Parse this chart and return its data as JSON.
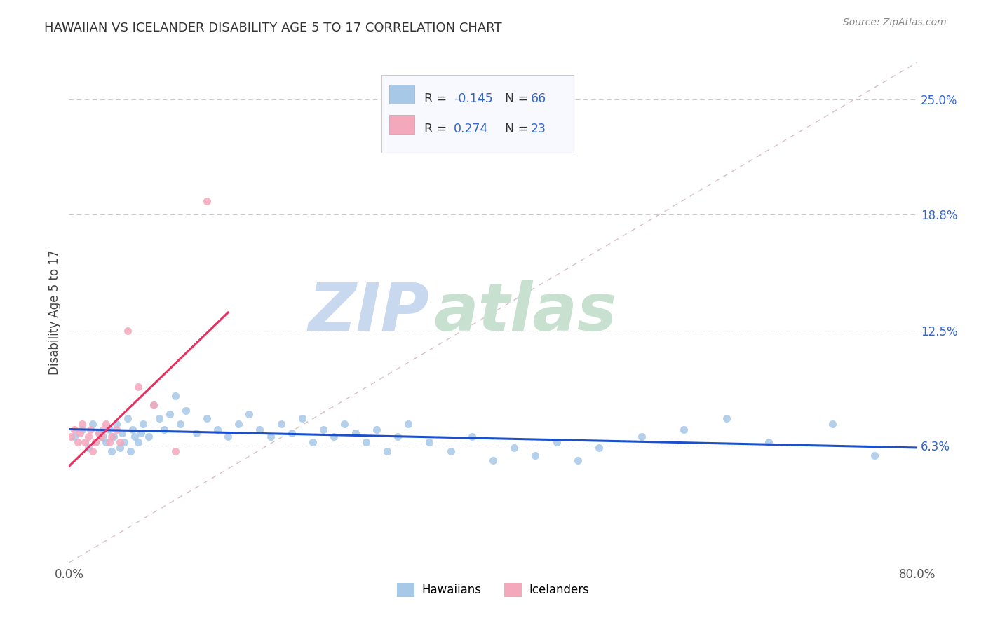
{
  "title": "HAWAIIAN VS ICELANDER DISABILITY AGE 5 TO 17 CORRELATION CHART",
  "source_text": "Source: ZipAtlas.com",
  "ylabel": "Disability Age 5 to 17",
  "right_yticks": [
    "6.3%",
    "12.5%",
    "18.8%",
    "25.0%"
  ],
  "right_ytick_vals": [
    0.063,
    0.125,
    0.188,
    0.25
  ],
  "xmin": 0.0,
  "xmax": 0.8,
  "ymin": 0.0,
  "ymax": 0.27,
  "hawaiian_color": "#a8c8e8",
  "icelander_color": "#f4a8bc",
  "trendline_hawaiian_color": "#1a50cc",
  "trendline_icelander_color": "#e83060",
  "diagonal_color": "#d8c0c0",
  "background_color": "#ffffff",
  "legend_box_color": "#e8eef8",
  "watermark_zip_color": "#c8d8ee",
  "watermark_atlas_color": "#d8e8d0",
  "hx": [
    0.005,
    0.012,
    0.018,
    0.022,
    0.025,
    0.028,
    0.032,
    0.035,
    0.038,
    0.04,
    0.042,
    0.045,
    0.048,
    0.05,
    0.052,
    0.055,
    0.058,
    0.06,
    0.062,
    0.065,
    0.068,
    0.07,
    0.075,
    0.08,
    0.085,
    0.09,
    0.095,
    0.1,
    0.105,
    0.11,
    0.12,
    0.13,
    0.14,
    0.15,
    0.16,
    0.17,
    0.18,
    0.19,
    0.2,
    0.21,
    0.22,
    0.23,
    0.24,
    0.25,
    0.26,
    0.27,
    0.28,
    0.29,
    0.3,
    0.31,
    0.32,
    0.34,
    0.36,
    0.38,
    0.4,
    0.42,
    0.44,
    0.46,
    0.48,
    0.5,
    0.54,
    0.58,
    0.62,
    0.66,
    0.72,
    0.76
  ],
  "hy": [
    0.068,
    0.072,
    0.062,
    0.075,
    0.065,
    0.07,
    0.068,
    0.065,
    0.072,
    0.06,
    0.068,
    0.075,
    0.062,
    0.07,
    0.065,
    0.078,
    0.06,
    0.072,
    0.068,
    0.065,
    0.07,
    0.075,
    0.068,
    0.085,
    0.078,
    0.072,
    0.08,
    0.09,
    0.075,
    0.082,
    0.07,
    0.078,
    0.072,
    0.068,
    0.075,
    0.08,
    0.072,
    0.068,
    0.075,
    0.07,
    0.078,
    0.065,
    0.072,
    0.068,
    0.075,
    0.07,
    0.065,
    0.072,
    0.06,
    0.068,
    0.075,
    0.065,
    0.06,
    0.068,
    0.055,
    0.062,
    0.058,
    0.065,
    0.055,
    0.062,
    0.068,
    0.072,
    0.078,
    0.065,
    0.075,
    0.058
  ],
  "ix": [
    0.002,
    0.005,
    0.008,
    0.01,
    0.012,
    0.015,
    0.018,
    0.02,
    0.022,
    0.025,
    0.028,
    0.03,
    0.032,
    0.035,
    0.038,
    0.04,
    0.045,
    0.048,
    0.055,
    0.065,
    0.08,
    0.1,
    0.13
  ],
  "iy": [
    0.068,
    0.072,
    0.065,
    0.07,
    0.075,
    0.065,
    0.068,
    0.072,
    0.06,
    0.065,
    0.07,
    0.068,
    0.072,
    0.075,
    0.065,
    0.068,
    0.072,
    0.065,
    0.125,
    0.095,
    0.085,
    0.06,
    0.195
  ]
}
